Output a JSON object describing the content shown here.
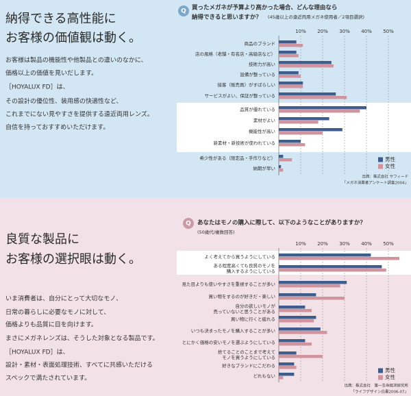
{
  "sections": [
    {
      "heading": [
        "納得できる高性能に",
        "お客様の価値観は動く。"
      ],
      "body": [
        "お客様は製品の機能性や他製品との違いのなかに、",
        "価格以上の価値を見いだします。",
        "［HOYALUX FD］は、",
        "その設計の優位性、装用感の快適性など、",
        "これまでにない見やすさを提供する遠近両用レンズ。",
        "自信を持っておすすめいただけます。"
      ]
    },
    {
      "heading": [
        "良質な製品に",
        "お客様の選択眼は動く。"
      ],
      "body": [
        "いま消費者は、自分にとって大切なモノ、",
        "日常の暮らしに必要なモノに対して、",
        "価格よりも品質に目を向けます。",
        "まさにメガネレンズは、そうした対象となる製品です。",
        "［HOYALUX FD］は、",
        "設計・素材・表面処理技術、すべてに共感いただける",
        "スペックで満たされています。"
      ]
    }
  ],
  "chart_data": [
    {
      "type": "bar",
      "orientation": "horizontal",
      "title": [
        "買ったメガネが予算より高かった場合、どんな理由なら",
        "納得できると思いますか？"
      ],
      "subtitle": "(45歳以上の遠近両用メガネ使用者／2項目選択)",
      "categories": [
        "商品のブランド",
        "店の風格（老舗・有名店・高級店など）",
        "技術力が高い",
        "設備が整っている",
        "接客（販売員）がすばらしい",
        "サービスがよい、保証が整っている",
        "品質が優れている",
        "素材がよい",
        "機能性が高い",
        "新素材・新技術が使われている",
        "希少性がある（限定品・手作りなど）",
        "納期が早い"
      ],
      "series": [
        {
          "name": "男性",
          "color": "#3f5d8c",
          "values": [
            8,
            8,
            24,
            9,
            11,
            26,
            40,
            23,
            29,
            10,
            2,
            1
          ]
        },
        {
          "name": "女性",
          "color": "#cf949e",
          "values": [
            11,
            9,
            25,
            10,
            11,
            31,
            37,
            18,
            20,
            12,
            6,
            2
          ]
        }
      ],
      "xlim": [
        0,
        55
      ],
      "xticks": [
        {
          "value": 10,
          "label": "10%"
        },
        {
          "value": 20,
          "label": "20%"
        },
        {
          "value": 30,
          "label": "30%"
        },
        {
          "value": 40,
          "label": "40%"
        },
        {
          "value": 50,
          "label": "50%"
        }
      ],
      "grid": true,
      "legend": "lower right",
      "source": [
        "出典：株式会社 サフィード",
        "「メガネ消費者アンケート調査2004」"
      ]
    },
    {
      "type": "bar",
      "orientation": "horizontal",
      "title": [
        "あなたはモノの購入に際して、以下のようなことがありますか？"
      ],
      "subtitle": "(50歳代/複数回答)",
      "categories": [
        "よく考えてから買うようにしている",
        "ある程度高くても良質のモノを\n購入するようにしている",
        "見た目よりも使いやすさを重視することが多い",
        "買い物をするのが好きだ・楽しい",
        "自分の欲しいモノが\n売っていないと思うことがある",
        "買い物に行くと疲れる",
        "いつも決まったモノを購入することが多い",
        "とにかく価格の安いモノを選ぶようにしている",
        "捨てることのことまで考えて\nモノを買うようにしている",
        "好きなブランドにこだわる",
        "どれもない"
      ],
      "series": [
        {
          "name": "男性",
          "color": "#3f5d8c",
          "values": [
            42,
            47,
            31,
            17,
            12,
            17,
            19,
            12,
            8,
            7,
            7
          ]
        },
        {
          "name": "女性",
          "color": "#cf949e",
          "values": [
            55,
            49,
            28,
            30,
            15,
            16,
            22,
            15,
            20,
            8,
            2
          ]
        }
      ],
      "xlim": [
        0,
        55
      ],
      "xticks": [
        {
          "value": 10,
          "label": "10%"
        },
        {
          "value": 20,
          "label": "20%"
        },
        {
          "value": 30,
          "label": "30%"
        },
        {
          "value": 40,
          "label": "40%"
        },
        {
          "value": 50,
          "label": "50%"
        }
      ],
      "grid": true,
      "legend": "lower right",
      "source": [
        "出典：株式会社　第一生命経済研究所",
        "「ライフデザイン白書2006-07」"
      ]
    }
  ]
}
